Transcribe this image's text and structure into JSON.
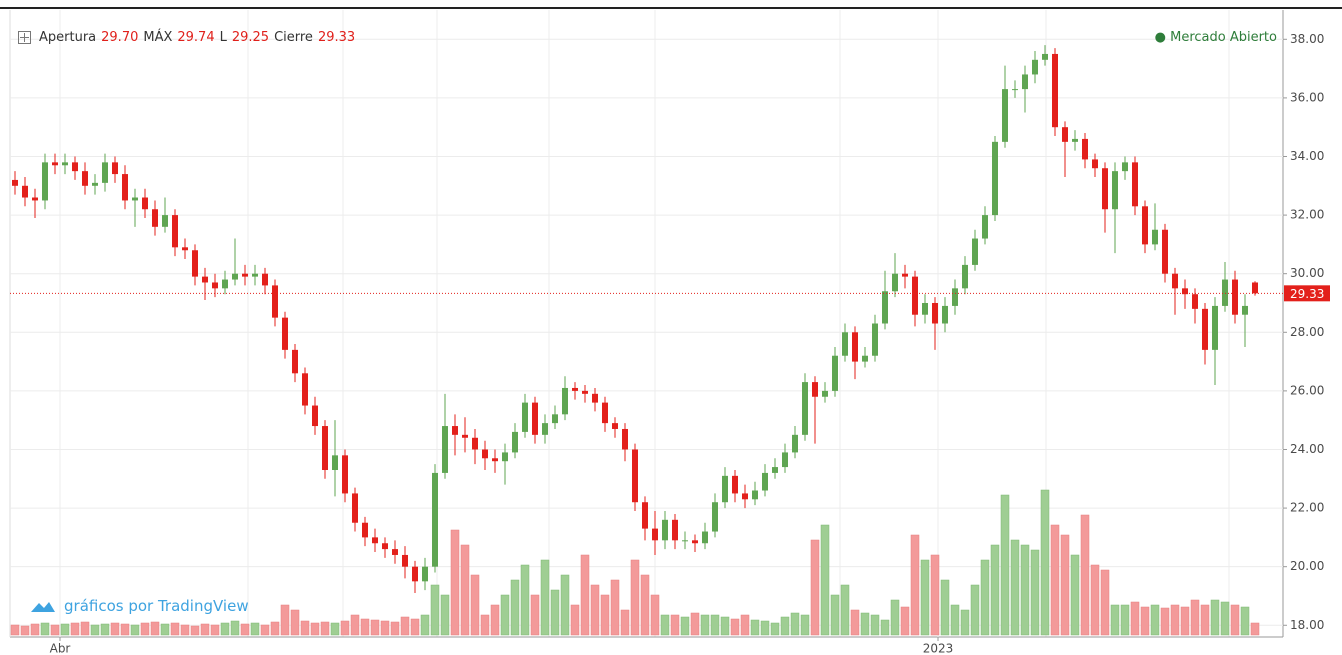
{
  "chart_data": {
    "type": "candlestick",
    "ohlc_legend": [
      {
        "label": "Apertura",
        "value": "29.70"
      },
      {
        "label": "MÁX",
        "value": "29.74"
      },
      {
        "label": "L",
        "value": "29.25"
      },
      {
        "label": "Cierre",
        "value": "29.33"
      }
    ],
    "status": "Mercado Abierto",
    "watermark": "gráficos por TradingView",
    "up_color": "#5fa552",
    "down_color": "#e3201b",
    "volume_up_color": "#9fce93",
    "volume_down_color": "#f39a9a",
    "ylim": [
      17.6,
      39.0
    ],
    "yticks": [
      {
        "value": 18,
        "label": "18.00"
      },
      {
        "value": 20,
        "label": "20.00"
      },
      {
        "value": 22,
        "label": "22.00"
      },
      {
        "value": 24,
        "label": "24.00"
      },
      {
        "value": 26,
        "label": "26.00"
      },
      {
        "value": 28,
        "label": "28.00"
      },
      {
        "value": 30,
        "label": "30.00"
      },
      {
        "value": 32,
        "label": "32.00"
      },
      {
        "value": 34,
        "label": "34.00"
      },
      {
        "value": 36,
        "label": "36.00"
      },
      {
        "value": 38,
        "label": "38.00"
      }
    ],
    "xticks": [
      {
        "value": 4.5,
        "label": "Abr"
      },
      {
        "value": 92.3,
        "label": "2023"
      }
    ],
    "last_price": {
      "value": 29.33,
      "label": "29.33"
    },
    "volume_lim": [
      0,
      160
    ],
    "grid": true,
    "open": [
      33.2,
      33.0,
      32.6,
      32.5,
      33.8,
      33.7,
      33.8,
      33.5,
      33.0,
      33.1,
      33.8,
      33.4,
      32.5,
      32.6,
      32.2,
      31.6,
      32.0,
      30.9,
      30.8,
      29.9,
      29.7,
      29.5,
      29.8,
      30.0,
      29.9,
      30.0,
      29.6,
      28.5,
      27.4,
      26.6,
      25.5,
      24.8,
      23.3,
      23.8,
      22.5,
      21.5,
      21.0,
      20.8,
      20.6,
      20.4,
      20.0,
      19.5,
      20.0,
      23.2,
      24.8,
      24.5,
      24.4,
      24.0,
      23.7,
      23.6,
      23.9,
      24.6,
      25.6,
      24.5,
      24.9,
      25.2,
      26.1,
      26.0,
      25.9,
      25.6,
      24.9,
      24.7,
      24.0,
      22.2,
      21.3,
      20.9,
      21.6,
      20.9,
      20.9,
      20.8,
      21.2,
      22.2,
      23.1,
      22.5,
      22.3,
      22.6,
      23.2,
      23.4,
      23.9,
      24.5,
      26.3,
      25.8,
      26.0,
      27.2,
      28.0,
      27.0,
      27.2,
      28.3,
      29.4,
      30.0,
      29.9,
      28.6,
      29.0,
      28.3,
      28.9,
      29.5,
      30.3,
      31.2,
      32.0,
      34.5,
      36.3,
      36.3,
      36.8,
      37.3,
      37.5,
      35.0,
      34.5,
      34.6,
      33.9,
      33.6,
      32.2,
      33.5,
      33.8,
      32.3,
      31.0,
      31.5,
      30.0,
      29.5,
      29.3,
      28.8,
      27.4,
      28.9,
      29.8,
      28.6,
      29.7
    ],
    "high": [
      33.5,
      33.3,
      32.9,
      34.1,
      34.1,
      34.1,
      34.0,
      33.8,
      33.4,
      34.1,
      34.0,
      33.7,
      32.9,
      32.9,
      32.5,
      32.6,
      32.2,
      31.2,
      31.0,
      30.2,
      30.0,
      30.1,
      31.2,
      30.3,
      30.3,
      30.2,
      29.8,
      28.7,
      27.6,
      26.8,
      25.8,
      25.0,
      25.0,
      24.0,
      22.7,
      21.7,
      21.3,
      21.0,
      20.9,
      20.7,
      20.2,
      20.3,
      23.5,
      25.9,
      25.2,
      25.1,
      24.7,
      24.3,
      24.0,
      24.2,
      24.9,
      25.9,
      25.8,
      25.2,
      25.5,
      26.5,
      26.3,
      26.2,
      26.1,
      25.8,
      25.1,
      24.9,
      24.2,
      22.4,
      21.9,
      21.9,
      21.8,
      21.2,
      21.1,
      21.5,
      22.5,
      23.4,
      23.3,
      22.8,
      22.9,
      23.5,
      23.7,
      24.2,
      24.8,
      26.6,
      26.5,
      26.3,
      27.5,
      28.3,
      28.2,
      27.5,
      28.6,
      30.1,
      30.7,
      30.3,
      30.1,
      29.3,
      29.2,
      29.2,
      29.8,
      30.6,
      31.5,
      32.3,
      34.7,
      37.1,
      36.6,
      37.1,
      37.6,
      37.8,
      37.7,
      35.2,
      34.9,
      34.8,
      34.1,
      33.8,
      33.8,
      34.0,
      34.0,
      32.5,
      32.4,
      31.7,
      30.2,
      29.8,
      29.5,
      29.0,
      29.2,
      30.4,
      30.1,
      29.3,
      29.74
    ],
    "low": [
      32.7,
      32.3,
      31.9,
      32.2,
      33.4,
      33.4,
      33.2,
      32.7,
      32.7,
      32.8,
      33.1,
      32.2,
      31.6,
      31.9,
      31.3,
      31.4,
      30.6,
      30.5,
      29.6,
      29.1,
      29.2,
      29.3,
      29.6,
      29.6,
      29.6,
      29.3,
      28.2,
      27.1,
      26.3,
      25.2,
      24.5,
      23.0,
      22.4,
      22.2,
      21.2,
      20.7,
      20.5,
      20.3,
      20.1,
      19.6,
      19.1,
      19.2,
      19.8,
      23.0,
      23.8,
      23.9,
      23.5,
      23.3,
      23.2,
      22.8,
      23.7,
      24.4,
      24.2,
      24.2,
      24.7,
      25.0,
      25.7,
      25.6,
      25.3,
      24.6,
      24.4,
      23.6,
      21.9,
      20.9,
      20.4,
      20.6,
      20.6,
      20.6,
      20.5,
      20.6,
      21.0,
      22.0,
      22.2,
      22.0,
      22.1,
      22.4,
      23.0,
      23.2,
      23.7,
      24.3,
      24.2,
      25.6,
      25.8,
      27.0,
      26.4,
      26.8,
      27.0,
      28.1,
      29.2,
      29.5,
      28.2,
      28.3,
      27.4,
      28.0,
      28.6,
      29.3,
      30.1,
      31.0,
      31.8,
      34.3,
      36.0,
      35.5,
      36.5,
      37.1,
      34.7,
      33.3,
      34.2,
      33.6,
      33.3,
      31.4,
      30.7,
      33.2,
      32.0,
      30.7,
      30.8,
      29.7,
      28.6,
      28.8,
      28.3,
      26.9,
      26.2,
      28.7,
      28.3,
      27.5,
      29.25
    ],
    "close": [
      33.0,
      32.6,
      32.5,
      33.8,
      33.7,
      33.8,
      33.5,
      33.0,
      33.1,
      33.8,
      33.4,
      32.5,
      32.6,
      32.2,
      31.6,
      32.0,
      30.9,
      30.8,
      29.9,
      29.7,
      29.5,
      29.8,
      30.0,
      29.9,
      30.0,
      29.6,
      28.5,
      27.4,
      26.6,
      25.5,
      24.8,
      23.3,
      23.8,
      22.5,
      21.5,
      21.0,
      20.8,
      20.6,
      20.4,
      20.0,
      19.5,
      20.0,
      23.2,
      24.8,
      24.5,
      24.4,
      24.0,
      23.7,
      23.6,
      23.9,
      24.6,
      25.6,
      24.5,
      24.9,
      25.2,
      26.1,
      26.0,
      25.9,
      25.6,
      24.9,
      24.7,
      24.0,
      22.2,
      21.3,
      20.9,
      21.6,
      20.9,
      20.9,
      20.8,
      21.2,
      22.2,
      23.1,
      22.5,
      22.3,
      22.6,
      23.2,
      23.4,
      23.9,
      24.5,
      26.3,
      25.8,
      26.0,
      27.2,
      28.0,
      27.0,
      27.2,
      28.3,
      29.4,
      30.0,
      29.9,
      28.6,
      29.0,
      28.3,
      28.9,
      29.5,
      30.3,
      31.2,
      32.0,
      34.5,
      36.3,
      36.3,
      36.8,
      37.3,
      37.5,
      35.0,
      34.5,
      34.6,
      33.9,
      33.6,
      32.2,
      33.5,
      33.8,
      32.3,
      31.0,
      31.5,
      30.0,
      29.5,
      29.3,
      28.8,
      27.4,
      28.9,
      29.8,
      28.6,
      28.9,
      29.33
    ],
    "volume": [
      10,
      9,
      11,
      12,
      10,
      11,
      12,
      13,
      10,
      11,
      12,
      11,
      10,
      12,
      13,
      11,
      12,
      10,
      9,
      11,
      10,
      12,
      14,
      11,
      12,
      10,
      13,
      30,
      25,
      14,
      12,
      13,
      12,
      14,
      20,
      16,
      15,
      14,
      13,
      18,
      16,
      20,
      50,
      40,
      105,
      90,
      60,
      20,
      30,
      40,
      55,
      70,
      40,
      75,
      45,
      60,
      30,
      80,
      50,
      40,
      55,
      25,
      75,
      60,
      40,
      20,
      20,
      18,
      22,
      20,
      20,
      18,
      16,
      20,
      15,
      14,
      12,
      18,
      22,
      20,
      95,
      110,
      40,
      50,
      25,
      22,
      20,
      15,
      35,
      28,
      100,
      75,
      80,
      55,
      30,
      25,
      50,
      75,
      90,
      140,
      95,
      90,
      85,
      145,
      110,
      100,
      80,
      120,
      70,
      65,
      30,
      30,
      33,
      28,
      30,
      27,
      30,
      28,
      35,
      30,
      35,
      33,
      30,
      28,
      12
    ]
  }
}
